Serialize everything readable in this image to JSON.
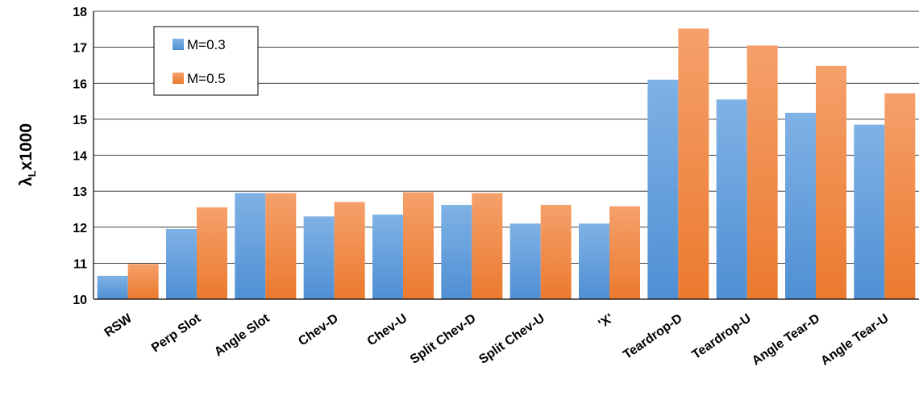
{
  "chart_data": {
    "type": "bar",
    "title": "",
    "xlabel": "",
    "ylabel": "λ",
    "ylabel_subscript": "L",
    "ylabel_suffix": "x1000",
    "ylim": [
      10,
      18
    ],
    "yticks": [
      10,
      11,
      12,
      13,
      14,
      15,
      16,
      17,
      18
    ],
    "grid": true,
    "legend": "top-left",
    "categories": [
      "RSW",
      "Perp Slot",
      "Angle Slot",
      "Chev-D",
      "Chev-U",
      "Split Chev-D",
      "Split Chev-U",
      "'X'",
      "Teardrop-D",
      "Teardrop-U",
      "Angle Tear-D",
      "Angle Tear-U"
    ],
    "series": [
      {
        "name": "M=0.3",
        "color": "#5b9bd5",
        "values": [
          10.65,
          11.95,
          12.95,
          12.3,
          12.35,
          12.62,
          12.1,
          12.1,
          16.1,
          15.55,
          15.18,
          14.85
        ]
      },
      {
        "name": "M=0.5",
        "color": "#ed7d31",
        "values": [
          10.98,
          12.55,
          12.95,
          12.7,
          12.97,
          12.95,
          12.62,
          12.58,
          17.52,
          17.05,
          16.48,
          15.72
        ]
      }
    ]
  }
}
